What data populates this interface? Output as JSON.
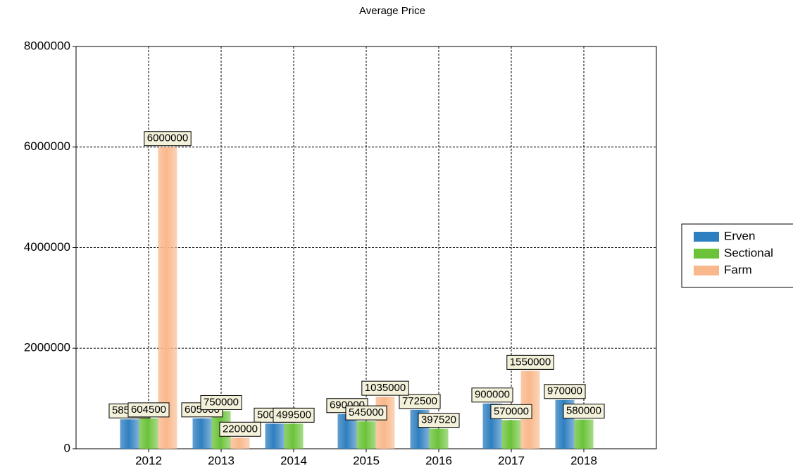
{
  "chart_data": {
    "type": "bar",
    "title": "Average Price",
    "categories": [
      "2012",
      "2013",
      "2014",
      "2015",
      "2016",
      "2017",
      "2018"
    ],
    "series": [
      {
        "name": "Erven",
        "color": "#2e7fc0",
        "values": [
          585000,
          605000,
          500000,
          690000,
          772500,
          900000,
          970000
        ]
      },
      {
        "name": "Sectional",
        "color": "#6cc33a",
        "values": [
          604500,
          750000,
          499500,
          545000,
          397520,
          570000,
          580000
        ]
      },
      {
        "name": "Farm",
        "color": "#f9b88b",
        "values": [
          6000000,
          220000,
          null,
          1035000,
          null,
          1550000,
          null
        ]
      }
    ],
    "ylim": [
      0,
      8000000
    ],
    "yticks": [
      0,
      2000000,
      4000000,
      6000000,
      8000000
    ],
    "grid": true,
    "legend": "right"
  }
}
